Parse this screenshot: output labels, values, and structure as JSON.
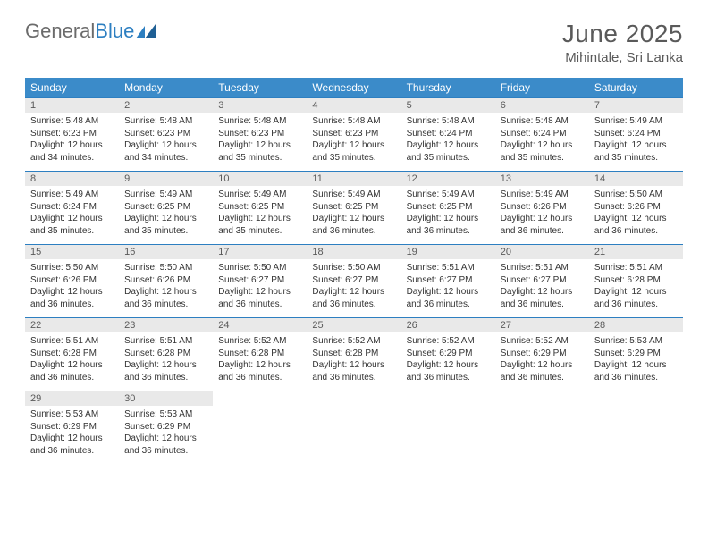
{
  "brand": {
    "part1": "General",
    "part2": "Blue"
  },
  "title": "June 2025",
  "location": "Mihintale, Sri Lanka",
  "colors": {
    "header_bg": "#3b8bc9",
    "header_text": "#ffffff",
    "border": "#2d7fc1",
    "daynum_bg": "#e9e9e9",
    "text": "#333333",
    "muted": "#5a5a5a"
  },
  "weekdays": [
    "Sunday",
    "Monday",
    "Tuesday",
    "Wednesday",
    "Thursday",
    "Friday",
    "Saturday"
  ],
  "days": [
    {
      "n": "1",
      "sr": "5:48 AM",
      "ss": "6:23 PM",
      "dl": "12 hours and 34 minutes."
    },
    {
      "n": "2",
      "sr": "5:48 AM",
      "ss": "6:23 PM",
      "dl": "12 hours and 34 minutes."
    },
    {
      "n": "3",
      "sr": "5:48 AM",
      "ss": "6:23 PM",
      "dl": "12 hours and 35 minutes."
    },
    {
      "n": "4",
      "sr": "5:48 AM",
      "ss": "6:23 PM",
      "dl": "12 hours and 35 minutes."
    },
    {
      "n": "5",
      "sr": "5:48 AM",
      "ss": "6:24 PM",
      "dl": "12 hours and 35 minutes."
    },
    {
      "n": "6",
      "sr": "5:48 AM",
      "ss": "6:24 PM",
      "dl": "12 hours and 35 minutes."
    },
    {
      "n": "7",
      "sr": "5:49 AM",
      "ss": "6:24 PM",
      "dl": "12 hours and 35 minutes."
    },
    {
      "n": "8",
      "sr": "5:49 AM",
      "ss": "6:24 PM",
      "dl": "12 hours and 35 minutes."
    },
    {
      "n": "9",
      "sr": "5:49 AM",
      "ss": "6:25 PM",
      "dl": "12 hours and 35 minutes."
    },
    {
      "n": "10",
      "sr": "5:49 AM",
      "ss": "6:25 PM",
      "dl": "12 hours and 35 minutes."
    },
    {
      "n": "11",
      "sr": "5:49 AM",
      "ss": "6:25 PM",
      "dl": "12 hours and 36 minutes."
    },
    {
      "n": "12",
      "sr": "5:49 AM",
      "ss": "6:25 PM",
      "dl": "12 hours and 36 minutes."
    },
    {
      "n": "13",
      "sr": "5:49 AM",
      "ss": "6:26 PM",
      "dl": "12 hours and 36 minutes."
    },
    {
      "n": "14",
      "sr": "5:50 AM",
      "ss": "6:26 PM",
      "dl": "12 hours and 36 minutes."
    },
    {
      "n": "15",
      "sr": "5:50 AM",
      "ss": "6:26 PM",
      "dl": "12 hours and 36 minutes."
    },
    {
      "n": "16",
      "sr": "5:50 AM",
      "ss": "6:26 PM",
      "dl": "12 hours and 36 minutes."
    },
    {
      "n": "17",
      "sr": "5:50 AM",
      "ss": "6:27 PM",
      "dl": "12 hours and 36 minutes."
    },
    {
      "n": "18",
      "sr": "5:50 AM",
      "ss": "6:27 PM",
      "dl": "12 hours and 36 minutes."
    },
    {
      "n": "19",
      "sr": "5:51 AM",
      "ss": "6:27 PM",
      "dl": "12 hours and 36 minutes."
    },
    {
      "n": "20",
      "sr": "5:51 AM",
      "ss": "6:27 PM",
      "dl": "12 hours and 36 minutes."
    },
    {
      "n": "21",
      "sr": "5:51 AM",
      "ss": "6:28 PM",
      "dl": "12 hours and 36 minutes."
    },
    {
      "n": "22",
      "sr": "5:51 AM",
      "ss": "6:28 PM",
      "dl": "12 hours and 36 minutes."
    },
    {
      "n": "23",
      "sr": "5:51 AM",
      "ss": "6:28 PM",
      "dl": "12 hours and 36 minutes."
    },
    {
      "n": "24",
      "sr": "5:52 AM",
      "ss": "6:28 PM",
      "dl": "12 hours and 36 minutes."
    },
    {
      "n": "25",
      "sr": "5:52 AM",
      "ss": "6:28 PM",
      "dl": "12 hours and 36 minutes."
    },
    {
      "n": "26",
      "sr": "5:52 AM",
      "ss": "6:29 PM",
      "dl": "12 hours and 36 minutes."
    },
    {
      "n": "27",
      "sr": "5:52 AM",
      "ss": "6:29 PM",
      "dl": "12 hours and 36 minutes."
    },
    {
      "n": "28",
      "sr": "5:53 AM",
      "ss": "6:29 PM",
      "dl": "12 hours and 36 minutes."
    },
    {
      "n": "29",
      "sr": "5:53 AM",
      "ss": "6:29 PM",
      "dl": "12 hours and 36 minutes."
    },
    {
      "n": "30",
      "sr": "5:53 AM",
      "ss": "6:29 PM",
      "dl": "12 hours and 36 minutes."
    }
  ],
  "labels": {
    "sunrise": "Sunrise:",
    "sunset": "Sunset:",
    "daylight": "Daylight:"
  }
}
